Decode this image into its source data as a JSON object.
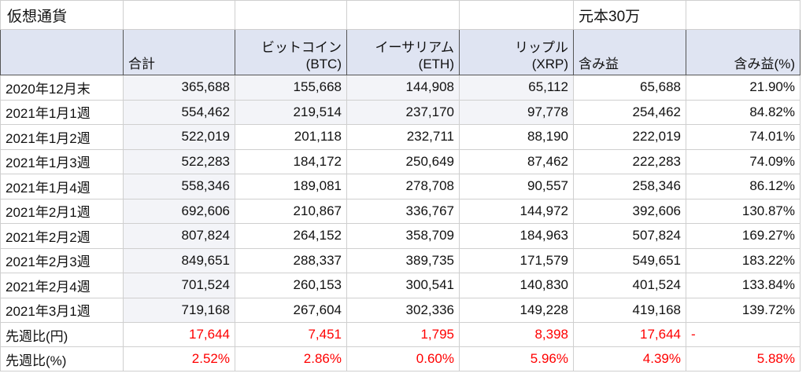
{
  "sheet": {
    "title": "仮想通貨",
    "note": "元本30万",
    "headers": {
      "total": "合計",
      "btc_line1": "ビットコイン",
      "btc_line2": "(BTC)",
      "eth_line1": "イーサリアム",
      "eth_line2": "(ETH)",
      "xrp_line1": "リップル",
      "xrp_line2": "(XRP)",
      "gain": "含み益",
      "gain_pct": "含み益(%)"
    },
    "rows": [
      {
        "date": "2020年12月末",
        "total": "365,688",
        "btc": "155,668",
        "eth": "144,908",
        "xrp": "65,112",
        "gain": "65,688",
        "gain_pct": "21.90%"
      },
      {
        "date": "2021年1月1週",
        "total": "554,462",
        "btc": "219,514",
        "eth": "237,170",
        "xrp": "97,778",
        "gain": "254,462",
        "gain_pct": "84.82%"
      },
      {
        "date": "2021年1月2週",
        "total": "522,019",
        "btc": "201,118",
        "eth": "232,711",
        "xrp": "88,190",
        "gain": "222,019",
        "gain_pct": "74.01%"
      },
      {
        "date": "2021年1月3週",
        "total": "522,283",
        "btc": "184,172",
        "eth": "250,649",
        "xrp": "87,462",
        "gain": "222,283",
        "gain_pct": "74.09%"
      },
      {
        "date": "2021年1月4週",
        "total": "558,346",
        "btc": "189,081",
        "eth": "278,708",
        "xrp": "90,557",
        "gain": "258,346",
        "gain_pct": "86.12%"
      },
      {
        "date": "2021年2月1週",
        "total": "692,606",
        "btc": "210,867",
        "eth": "336,767",
        "xrp": "144,972",
        "gain": "392,606",
        "gain_pct": "130.87%"
      },
      {
        "date": "2021年2月2週",
        "total": "807,824",
        "btc": "264,152",
        "eth": "358,709",
        "xrp": "184,963",
        "gain": "507,824",
        "gain_pct": "169.27%"
      },
      {
        "date": "2021年2月3週",
        "total": "849,651",
        "btc": "288,337",
        "eth": "389,735",
        "xrp": "171,579",
        "gain": "549,651",
        "gain_pct": "183.22%"
      },
      {
        "date": "2021年2月4週",
        "total": "701,524",
        "btc": "260,153",
        "eth": "300,541",
        "xrp": "140,830",
        "gain": "401,524",
        "gain_pct": "133.84%"
      },
      {
        "date": "2021年3月1週",
        "total": "719,168",
        "btc": "267,604",
        "eth": "302,336",
        "xrp": "149,228",
        "gain": "419,168",
        "gain_pct": "139.72%"
      }
    ],
    "diff_yen": {
      "label": "先週比(円)",
      "total": "17,644",
      "btc": "7,451",
      "eth": "1,795",
      "xrp": "8,398",
      "gain": "17,644",
      "gain_pct": "-"
    },
    "diff_pct": {
      "label": "先週比(%)",
      "total": "2.52%",
      "btc": "2.86%",
      "eth": "0.60%",
      "xrp": "5.96%",
      "gain": "4.39%",
      "gain_pct": "5.88%"
    },
    "colors": {
      "header_bg": "#dfe4f2",
      "shade_bg": "#f3f4f8",
      "negative_red": "#ff0000",
      "grid": "#cfcfcf"
    }
  }
}
